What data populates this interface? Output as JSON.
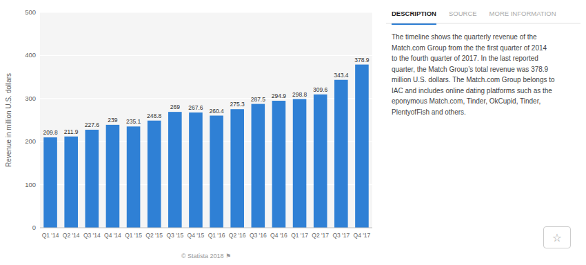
{
  "chart_data": {
    "type": "bar",
    "categories": [
      "Q1 '14",
      "Q2 '14",
      "Q3 '14",
      "Q4 '14",
      "Q1 '15",
      "Q2 '15",
      "Q3 '15",
      "Q4 '15",
      "Q1 '16",
      "Q2 '16",
      "Q3 '16",
      "Q4 '16",
      "Q1 '17",
      "Q2 '17",
      "Q3 '17",
      "Q4 '17"
    ],
    "values": [
      209.8,
      211.9,
      227.6,
      239,
      235.1,
      248.8,
      269,
      267.6,
      260.4,
      275.3,
      287.5,
      294.9,
      298.8,
      309.6,
      343.4,
      378.9
    ],
    "color": "#2f80d5",
    "y_label": "Revenue in million U.S. dollars",
    "ylim": [
      0,
      500
    ],
    "yticks": [
      0,
      100,
      200,
      300,
      400,
      500
    ],
    "grid": true,
    "data_labels": true
  },
  "footer": "© Statista 2018  ⚑",
  "panel": {
    "tabs": [
      "DESCRIPTION",
      "SOURCE",
      "MORE INFORMATION"
    ],
    "active_tab": "DESCRIPTION",
    "description": "The timeline shows the quarterly revenue of the\nMatch.com Group from the the first quarter of 2014\nto the fourth quarter of 2017. In the last reported\nquarter, the Match Group’s total revenue was 378.9\nmillion U.S. dollars. The Match.com Group belongs to\nIAC and includes online dating platforms such as the\neponymous Match.com, Tinder, OkCupid, Tinder,\nPlentyofFish and others.",
    "icon": "☆"
  }
}
